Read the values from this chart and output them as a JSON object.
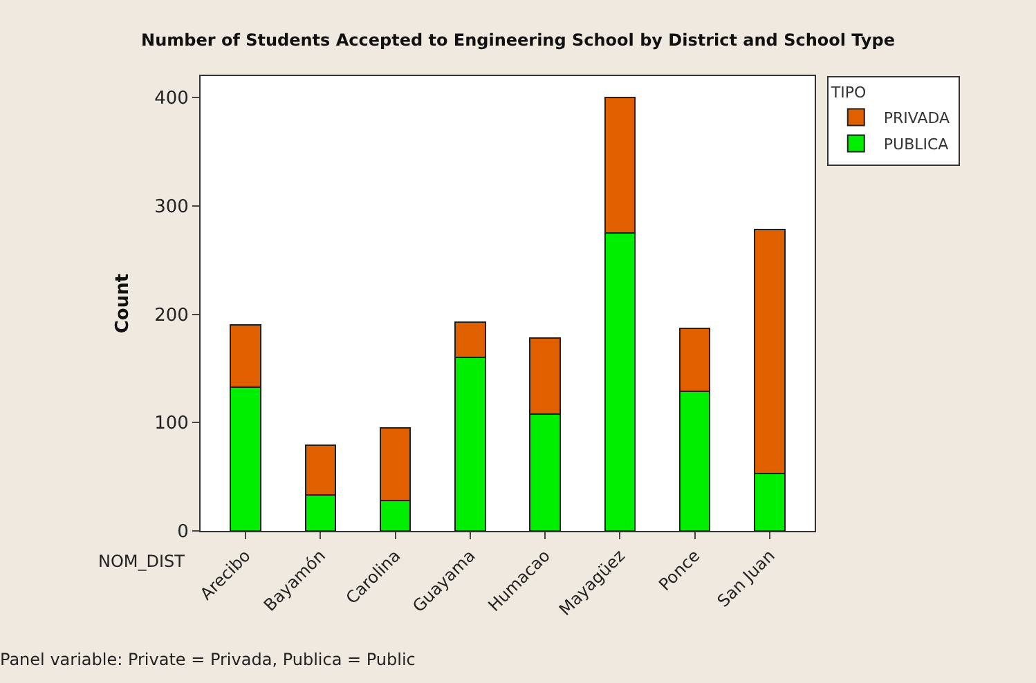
{
  "chart_data": {
    "type": "bar",
    "title": "Number of Students Accepted to Engineering School by District and School Type",
    "xlabel": "NOM_DIST",
    "ylabel": "Count",
    "legend_title": "TIPO",
    "stacked": true,
    "legend": "top right",
    "categories": [
      "Arecibo",
      "Bayamón",
      "Carolina",
      "Guayama",
      "Humacao",
      "Mayagüez",
      "Ponce",
      "San Juan"
    ],
    "series": [
      {
        "name": "PUBLICA",
        "color": "#00ee00",
        "values": [
          133,
          33,
          28,
          160,
          108,
          275,
          129,
          53
        ]
      },
      {
        "name": "PRIVADA",
        "color": "#e06000",
        "values": [
          57,
          46,
          67,
          33,
          70,
          125,
          58,
          225
        ]
      }
    ],
    "ylim": [
      0,
      420
    ],
    "yticks": [
      0,
      100,
      200,
      300,
      400
    ],
    "annotations": [
      "Panel variable: Private = Privada, Publica = Public"
    ]
  }
}
